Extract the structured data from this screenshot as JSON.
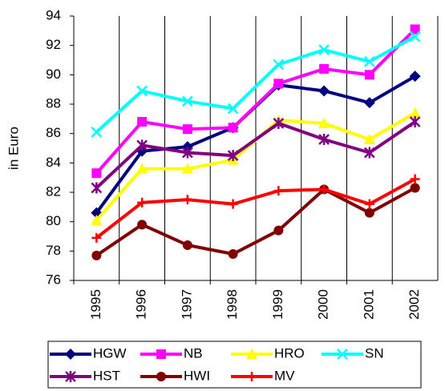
{
  "chart_data": {
    "type": "line",
    "y_label": "in Euro",
    "categories": [
      "1995",
      "1996",
      "1997",
      "1998",
      "1999",
      "2000",
      "2001",
      "2002"
    ],
    "ylim": [
      76,
      94
    ],
    "yticks": [
      76,
      78,
      80,
      82,
      84,
      86,
      88,
      90,
      92,
      94
    ],
    "grid": "vertical",
    "series": [
      {
        "name": "HGW",
        "color": "#000080",
        "marker": "diamond",
        "values": [
          80.6,
          84.8,
          85.1,
          86.4,
          89.3,
          88.9,
          88.1,
          89.9
        ]
      },
      {
        "name": "NB",
        "color": "#ff00ff",
        "marker": "square",
        "values": [
          83.3,
          86.8,
          86.3,
          86.4,
          89.4,
          90.4,
          90.0,
          93.1
        ]
      },
      {
        "name": "HRO",
        "color": "#ffff00",
        "marker": "triangle",
        "values": [
          80.1,
          83.6,
          83.6,
          84.2,
          86.9,
          86.7,
          85.6,
          87.4
        ]
      },
      {
        "name": "SN",
        "color": "#00ffff",
        "marker": "x",
        "values": [
          86.1,
          88.9,
          88.2,
          87.7,
          90.7,
          91.7,
          90.9,
          92.6
        ]
      },
      {
        "name": "HST",
        "color": "#800080",
        "marker": "star",
        "values": [
          82.3,
          85.2,
          84.7,
          84.5,
          86.7,
          85.6,
          84.7,
          86.8
        ]
      },
      {
        "name": "HWI",
        "color": "#800000",
        "marker": "circle",
        "values": [
          77.7,
          79.8,
          78.4,
          77.8,
          79.4,
          82.2,
          80.6,
          82.3
        ]
      },
      {
        "name": "MV",
        "color": "#ff0000",
        "marker": "plus",
        "values": [
          78.9,
          81.3,
          81.5,
          81.2,
          82.1,
          82.2,
          81.2,
          82.9
        ]
      }
    ]
  }
}
